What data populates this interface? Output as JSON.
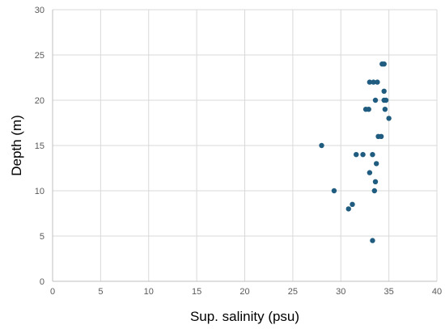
{
  "chart_data": {
    "type": "scatter",
    "title": "",
    "xlabel": "Sup. salinity (psu)",
    "ylabel": "Depth (m)",
    "xlim": [
      0,
      40
    ],
    "ylim": [
      0,
      30
    ],
    "xticks": [
      "0",
      "5",
      "10",
      "15",
      "20",
      "25",
      "30",
      "35",
      "40"
    ],
    "yticks": [
      "0",
      "5",
      "10",
      "15",
      "20",
      "25",
      "30"
    ],
    "grid": true,
    "legend": "none",
    "marker_color": "#1f5c7f",
    "points": [
      {
        "x": 33.3,
        "y": 4.5
      },
      {
        "x": 30.8,
        "y": 8.0
      },
      {
        "x": 31.2,
        "y": 8.5
      },
      {
        "x": 29.3,
        "y": 10.0
      },
      {
        "x": 33.5,
        "y": 10.0
      },
      {
        "x": 33.6,
        "y": 11.0
      },
      {
        "x": 33.0,
        "y": 12.0
      },
      {
        "x": 33.7,
        "y": 13.0
      },
      {
        "x": 31.6,
        "y": 14.0
      },
      {
        "x": 32.3,
        "y": 14.0
      },
      {
        "x": 33.3,
        "y": 14.0
      },
      {
        "x": 28.0,
        "y": 15.0
      },
      {
        "x": 33.9,
        "y": 16.0
      },
      {
        "x": 34.2,
        "y": 16.0
      },
      {
        "x": 35.0,
        "y": 18.0
      },
      {
        "x": 32.6,
        "y": 19.0
      },
      {
        "x": 32.9,
        "y": 19.0
      },
      {
        "x": 34.6,
        "y": 19.0
      },
      {
        "x": 33.6,
        "y": 20.0
      },
      {
        "x": 34.5,
        "y": 20.0
      },
      {
        "x": 34.7,
        "y": 20.0
      },
      {
        "x": 34.5,
        "y": 21.0
      },
      {
        "x": 33.0,
        "y": 22.0
      },
      {
        "x": 33.4,
        "y": 22.0
      },
      {
        "x": 33.8,
        "y": 22.0
      },
      {
        "x": 34.3,
        "y": 24.0
      },
      {
        "x": 34.5,
        "y": 24.0
      }
    ]
  }
}
